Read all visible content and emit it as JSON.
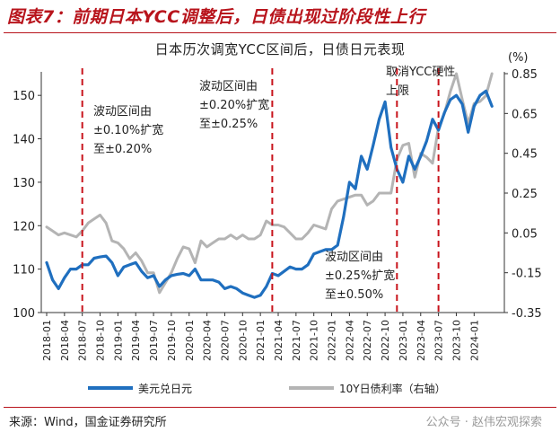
{
  "figure_title": "图表7：前期日本YCC调整后，日债出现过阶段性上行",
  "chart_data": {
    "type": "line",
    "title": "日本历次调宽YCC区间后，日债日元表现",
    "right_unit": "(%)",
    "x_ticks": [
      "2018-01",
      "2018-04",
      "2018-07",
      "2018-10",
      "2019-01",
      "2019-04",
      "2019-07",
      "2019-10",
      "2020-01",
      "2020-04",
      "2020-07",
      "2020-10",
      "2021-01",
      "2021-04",
      "2021-07",
      "2021-10",
      "2022-01",
      "2022-04",
      "2022-07",
      "2022-10",
      "2023-01",
      "2023-04",
      "2023-07",
      "2023-10",
      "2024-01"
    ],
    "left_axis": {
      "min": 100,
      "max": 155,
      "ticks": [
        100,
        110,
        120,
        130,
        140,
        150
      ]
    },
    "right_axis": {
      "min": -0.35,
      "max": 0.85,
      "ticks": [
        "0.85",
        "0.65",
        "0.45",
        "0.25",
        "0.05",
        "-0.15",
        "-0.35"
      ]
    },
    "events": [
      {
        "date": "2018-07",
        "lines": [
          "波动区间由",
          "±0.10%扩宽",
          "至±0.20%"
        ]
      },
      {
        "date": "2021-03",
        "lines": [
          "波动区间由",
          "±0.20%扩宽",
          "至±0.25%"
        ]
      },
      {
        "date": "2022-12",
        "lines": [
          "波动区间由",
          "±0.25%扩宽",
          "至±0.50%"
        ]
      },
      {
        "date": "2023-07",
        "lines": [
          "取消YCC硬性",
          "上限"
        ]
      }
    ],
    "series": [
      {
        "name": "美元兑日元",
        "axis": "left",
        "color": "#1f6fbf",
        "points": [
          [
            "2018-01",
            111.5
          ],
          [
            "2018-02",
            107.5
          ],
          [
            "2018-03",
            105.5
          ],
          [
            "2018-04",
            108.0
          ],
          [
            "2018-05",
            110.0
          ],
          [
            "2018-06",
            110.0
          ],
          [
            "2018-07",
            111.0
          ],
          [
            "2018-08",
            111.0
          ],
          [
            "2018-09",
            112.5
          ],
          [
            "2018-10",
            112.8
          ],
          [
            "2018-11",
            113.0
          ],
          [
            "2018-12",
            111.5
          ],
          [
            "2019-01",
            108.5
          ],
          [
            "2019-02",
            110.5
          ],
          [
            "2019-03",
            111.0
          ],
          [
            "2019-04",
            111.5
          ],
          [
            "2019-05",
            109.5
          ],
          [
            "2019-06",
            108.0
          ],
          [
            "2019-07",
            108.5
          ],
          [
            "2019-08",
            106.0
          ],
          [
            "2019-09",
            107.5
          ],
          [
            "2019-10",
            108.5
          ],
          [
            "2019-11",
            108.8
          ],
          [
            "2019-12",
            109.0
          ],
          [
            "2020-01",
            108.5
          ],
          [
            "2020-02",
            110.0
          ],
          [
            "2020-03",
            107.5
          ],
          [
            "2020-04",
            107.5
          ],
          [
            "2020-05",
            107.5
          ],
          [
            "2020-06",
            107.0
          ],
          [
            "2020-07",
            105.5
          ],
          [
            "2020-08",
            106.0
          ],
          [
            "2020-09",
            105.5
          ],
          [
            "2020-10",
            104.5
          ],
          [
            "2020-11",
            104.0
          ],
          [
            "2020-12",
            103.5
          ],
          [
            "2021-01",
            104.0
          ],
          [
            "2021-02",
            106.0
          ],
          [
            "2021-03",
            109.0
          ],
          [
            "2021-04",
            108.5
          ],
          [
            "2021-05",
            109.5
          ],
          [
            "2021-06",
            110.5
          ],
          [
            "2021-07",
            110.0
          ],
          [
            "2021-08",
            110.0
          ],
          [
            "2021-09",
            111.0
          ],
          [
            "2021-10",
            113.5
          ],
          [
            "2021-11",
            114.0
          ],
          [
            "2021-12",
            114.5
          ],
          [
            "2022-01",
            114.5
          ],
          [
            "2022-02",
            115.5
          ],
          [
            "2022-03",
            122.0
          ],
          [
            "2022-04",
            130.0
          ],
          [
            "2022-05",
            128.5
          ],
          [
            "2022-06",
            136.0
          ],
          [
            "2022-07",
            133.0
          ],
          [
            "2022-08",
            138.5
          ],
          [
            "2022-09",
            144.5
          ],
          [
            "2022-10",
            148.5
          ],
          [
            "2022-11",
            138.0
          ],
          [
            "2022-12",
            133.0
          ],
          [
            "2023-01",
            130.0
          ],
          [
            "2023-02",
            136.0
          ],
          [
            "2023-03",
            133.0
          ],
          [
            "2023-04",
            136.0
          ],
          [
            "2023-05",
            139.5
          ],
          [
            "2023-06",
            144.5
          ],
          [
            "2023-07",
            142.0
          ],
          [
            "2023-08",
            146.0
          ],
          [
            "2023-09",
            149.0
          ],
          [
            "2023-10",
            150.0
          ],
          [
            "2023-11",
            148.0
          ],
          [
            "2023-12",
            141.5
          ],
          [
            "2024-01",
            147.5
          ],
          [
            "2024-02",
            150.0
          ],
          [
            "2024-03",
            151.0
          ],
          [
            "2024-04",
            147.5
          ]
        ]
      },
      {
        "name": "10Y日债利率（右轴）",
        "axis": "right",
        "color": "#b4b4b4",
        "points": [
          [
            "2018-01",
            0.08
          ],
          [
            "2018-02",
            0.06
          ],
          [
            "2018-03",
            0.04
          ],
          [
            "2018-04",
            0.05
          ],
          [
            "2018-05",
            0.04
          ],
          [
            "2018-06",
            0.03
          ],
          [
            "2018-07",
            0.06
          ],
          [
            "2018-08",
            0.1
          ],
          [
            "2018-09",
            0.12
          ],
          [
            "2018-10",
            0.14
          ],
          [
            "2018-11",
            0.1
          ],
          [
            "2018-12",
            0.01
          ],
          [
            "2019-01",
            0.0
          ],
          [
            "2019-02",
            -0.03
          ],
          [
            "2019-03",
            -0.08
          ],
          [
            "2019-04",
            -0.05
          ],
          [
            "2019-05",
            -0.09
          ],
          [
            "2019-06",
            -0.15
          ],
          [
            "2019-07",
            -0.15
          ],
          [
            "2019-08",
            -0.25
          ],
          [
            "2019-09",
            -0.2
          ],
          [
            "2019-10",
            -0.15
          ],
          [
            "2019-11",
            -0.08
          ],
          [
            "2019-12",
            -0.02
          ],
          [
            "2020-01",
            -0.03
          ],
          [
            "2020-02",
            -0.1
          ],
          [
            "2020-03",
            0.01
          ],
          [
            "2020-04",
            -0.02
          ],
          [
            "2020-05",
            0.0
          ],
          [
            "2020-06",
            0.02
          ],
          [
            "2020-07",
            0.02
          ],
          [
            "2020-08",
            0.04
          ],
          [
            "2020-09",
            0.02
          ],
          [
            "2020-10",
            0.04
          ],
          [
            "2020-11",
            0.02
          ],
          [
            "2020-12",
            0.02
          ],
          [
            "2021-01",
            0.04
          ],
          [
            "2021-02",
            0.11
          ],
          [
            "2021-03",
            0.09
          ],
          [
            "2021-04",
            0.09
          ],
          [
            "2021-05",
            0.08
          ],
          [
            "2021-06",
            0.05
          ],
          [
            "2021-07",
            0.02
          ],
          [
            "2021-08",
            0.02
          ],
          [
            "2021-09",
            0.05
          ],
          [
            "2021-10",
            0.09
          ],
          [
            "2021-11",
            0.08
          ],
          [
            "2021-12",
            0.07
          ],
          [
            "2022-01",
            0.17
          ],
          [
            "2022-02",
            0.21
          ],
          [
            "2022-03",
            0.22
          ],
          [
            "2022-04",
            0.23
          ],
          [
            "2022-05",
            0.24
          ],
          [
            "2022-06",
            0.24
          ],
          [
            "2022-07",
            0.19
          ],
          [
            "2022-08",
            0.21
          ],
          [
            "2022-09",
            0.25
          ],
          [
            "2022-10",
            0.25
          ],
          [
            "2022-11",
            0.25
          ],
          [
            "2022-12",
            0.42
          ],
          [
            "2023-01",
            0.49
          ],
          [
            "2023-02",
            0.5
          ],
          [
            "2023-03",
            0.33
          ],
          [
            "2023-04",
            0.45
          ],
          [
            "2023-05",
            0.43
          ],
          [
            "2023-06",
            0.4
          ],
          [
            "2023-07",
            0.58
          ],
          [
            "2023-08",
            0.65
          ],
          [
            "2023-09",
            0.76
          ],
          [
            "2023-10",
            0.85
          ],
          [
            "2023-11",
            0.72
          ],
          [
            "2023-12",
            0.6
          ],
          [
            "2024-01",
            0.7
          ],
          [
            "2024-02",
            0.71
          ],
          [
            "2024-03",
            0.74
          ],
          [
            "2024-04",
            0.85
          ]
        ]
      }
    ]
  },
  "source": "来源：Wind，国金证券研究所",
  "watermark": "公众号 · 赵伟宏观探索"
}
